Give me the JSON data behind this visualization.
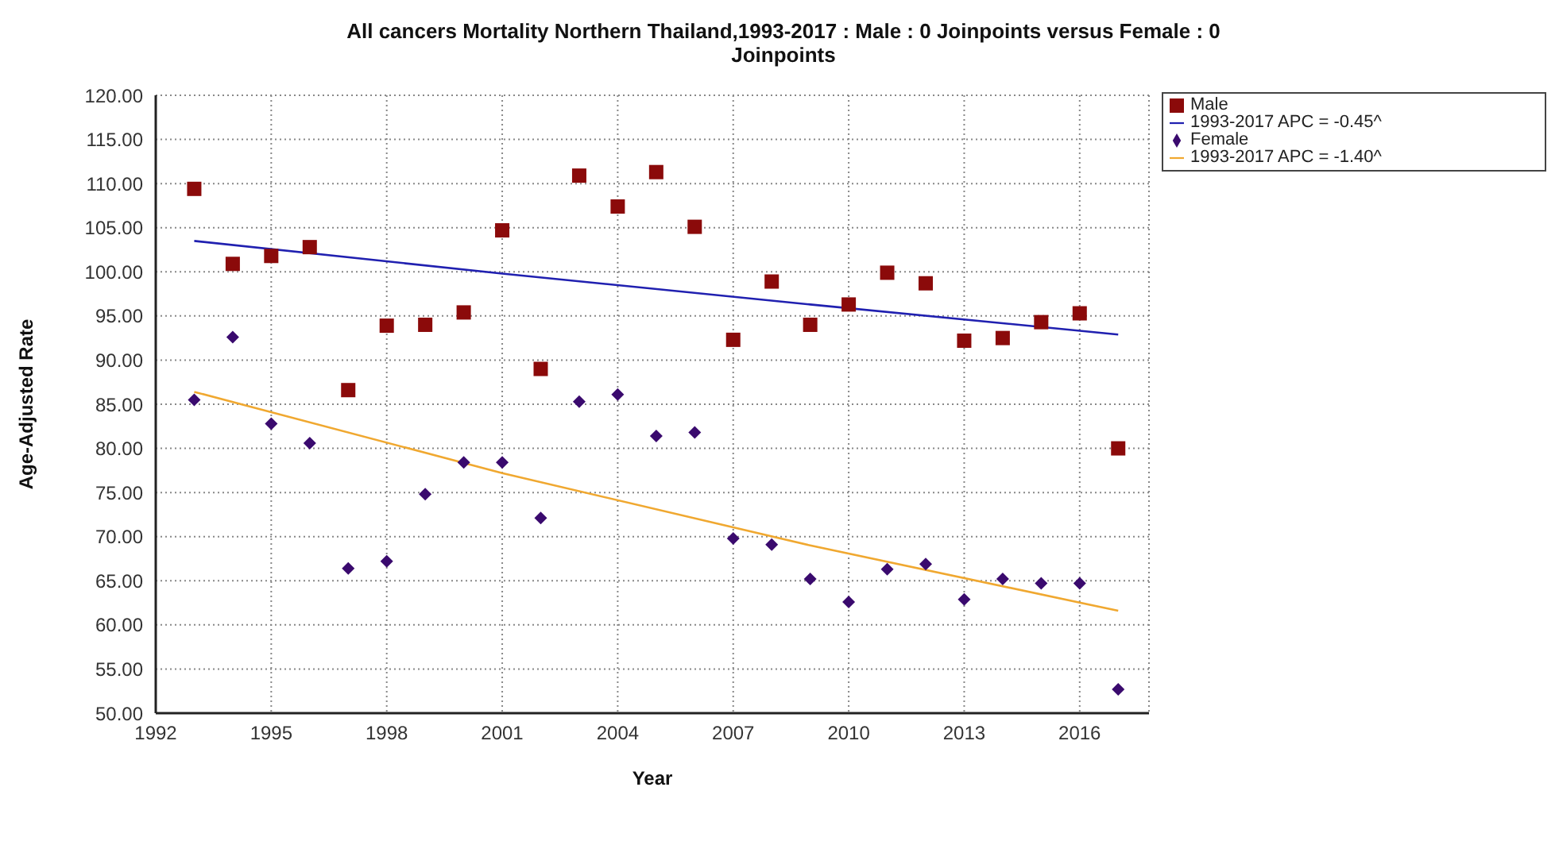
{
  "chart_data": {
    "type": "scatter",
    "title": "All cancers Mortality Northern Thailand,1993-2017 : Male : 0 Joinpoints  versus  Female : 0 Joinpoints",
    "xlabel": "Year",
    "ylabel": "Age-Adjusted Rate",
    "x": [
      1993,
      1994,
      1995,
      1996,
      1997,
      1998,
      1999,
      2000,
      2001,
      2002,
      2003,
      2004,
      2005,
      2006,
      2007,
      2008,
      2009,
      2010,
      2011,
      2012,
      2013,
      2014,
      2015,
      2016,
      2017
    ],
    "series": [
      {
        "name": "Male",
        "marker": "square",
        "color": "#8b0a0a",
        "values": [
          109.4,
          100.9,
          101.8,
          102.8,
          86.6,
          93.9,
          94.0,
          95.4,
          104.7,
          89.0,
          110.9,
          107.4,
          111.3,
          105.1,
          92.3,
          98.9,
          94.0,
          96.3,
          99.9,
          98.7,
          92.2,
          92.5,
          94.3,
          95.3,
          80.0
        ]
      },
      {
        "name": "1993-2017 APC  = -0.45^",
        "type": "line",
        "marker": "none",
        "color": "#2020b0",
        "x": [
          1993,
          2001,
          2009,
          2017
        ],
        "values": [
          103.5,
          99.8,
          96.3,
          92.9
        ]
      },
      {
        "name": "Female",
        "marker": "diamond",
        "color": "#3a0a6e",
        "values": [
          85.5,
          92.6,
          82.8,
          80.6,
          66.4,
          67.2,
          74.8,
          78.4,
          78.4,
          72.1,
          85.3,
          86.1,
          81.4,
          81.8,
          69.8,
          69.1,
          65.2,
          62.6,
          66.3,
          66.9,
          62.9,
          65.2,
          64.7,
          64.7,
          52.7
        ]
      },
      {
        "name": "1993-2017 APC  = -1.40^",
        "type": "line",
        "marker": "none",
        "color": "#f0a830",
        "x": [
          1993,
          2001,
          2009,
          2017
        ],
        "values": [
          86.4,
          77.2,
          69.0,
          61.6
        ]
      }
    ],
    "xlim": [
      1992,
      2017.8
    ],
    "xticks": [
      1992,
      1995,
      1998,
      2001,
      2004,
      2007,
      2010,
      2013,
      2016
    ],
    "ylim": [
      50,
      120
    ],
    "yticks": [
      {
        "value": 50,
        "label": "50.00"
      },
      {
        "value": 55,
        "label": "55.00"
      },
      {
        "value": 60,
        "label": "60.00"
      },
      {
        "value": 65,
        "label": "65.00"
      },
      {
        "value": 70,
        "label": "70.00"
      },
      {
        "value": 75,
        "label": "75.00"
      },
      {
        "value": 80,
        "label": "80.00"
      },
      {
        "value": 85,
        "label": "85.00"
      },
      {
        "value": 90,
        "label": "90.00"
      },
      {
        "value": 95,
        "label": "95.00"
      },
      {
        "value": 100,
        "label": "100.00"
      },
      {
        "value": 105,
        "label": "105.00"
      },
      {
        "value": 110,
        "label": "110.00"
      },
      {
        "value": 115,
        "label": "115.00"
      },
      {
        "value": 120,
        "label": "120.00"
      }
    ],
    "grid": true,
    "legend": "top right"
  }
}
